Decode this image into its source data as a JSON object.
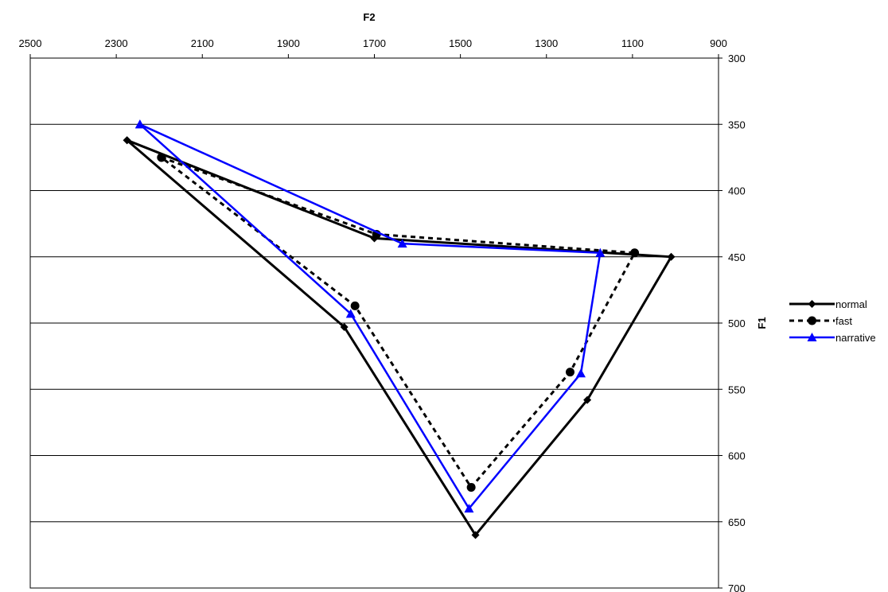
{
  "chart_data": {
    "type": "line",
    "xlabel": "F2",
    "ylabel": "F1",
    "xlim": [
      2500,
      900
    ],
    "ylim": [
      300,
      700
    ],
    "x_axis_position": "top",
    "x_reversed": true,
    "y_axis_position": "right",
    "y_reversed": true,
    "x_ticks": [
      2500,
      2300,
      2100,
      1900,
      1700,
      1500,
      1300,
      1100,
      900
    ],
    "y_ticks": [
      300,
      350,
      400,
      450,
      500,
      550,
      600,
      650,
      700
    ],
    "grid": "horizontal",
    "legend_position": "right",
    "series": [
      {
        "name": "normal",
        "color": "#000000",
        "line_style": "solid",
        "marker": "diamond",
        "points": [
          [
            2275,
            362
          ],
          [
            1700,
            436
          ],
          [
            1010,
            450
          ],
          [
            1205,
            558
          ],
          [
            1465,
            660
          ],
          [
            1770,
            503
          ],
          [
            2275,
            362
          ]
        ]
      },
      {
        "name": "fast",
        "color": "#000000",
        "line_style": "dashed",
        "marker": "circle",
        "points": [
          [
            2195,
            375
          ],
          [
            1695,
            433
          ],
          [
            1095,
            447
          ],
          [
            1245,
            537
          ],
          [
            1475,
            624
          ],
          [
            1745,
            487
          ],
          [
            2195,
            375
          ]
        ]
      },
      {
        "name": "narrative",
        "color": "#0000ff",
        "line_style": "solid",
        "marker": "triangle",
        "points": [
          [
            2245,
            350
          ],
          [
            1635,
            440
          ],
          [
            1175,
            447
          ],
          [
            1220,
            538
          ],
          [
            1480,
            640
          ],
          [
            1755,
            493
          ],
          [
            2245,
            350
          ]
        ]
      }
    ]
  }
}
